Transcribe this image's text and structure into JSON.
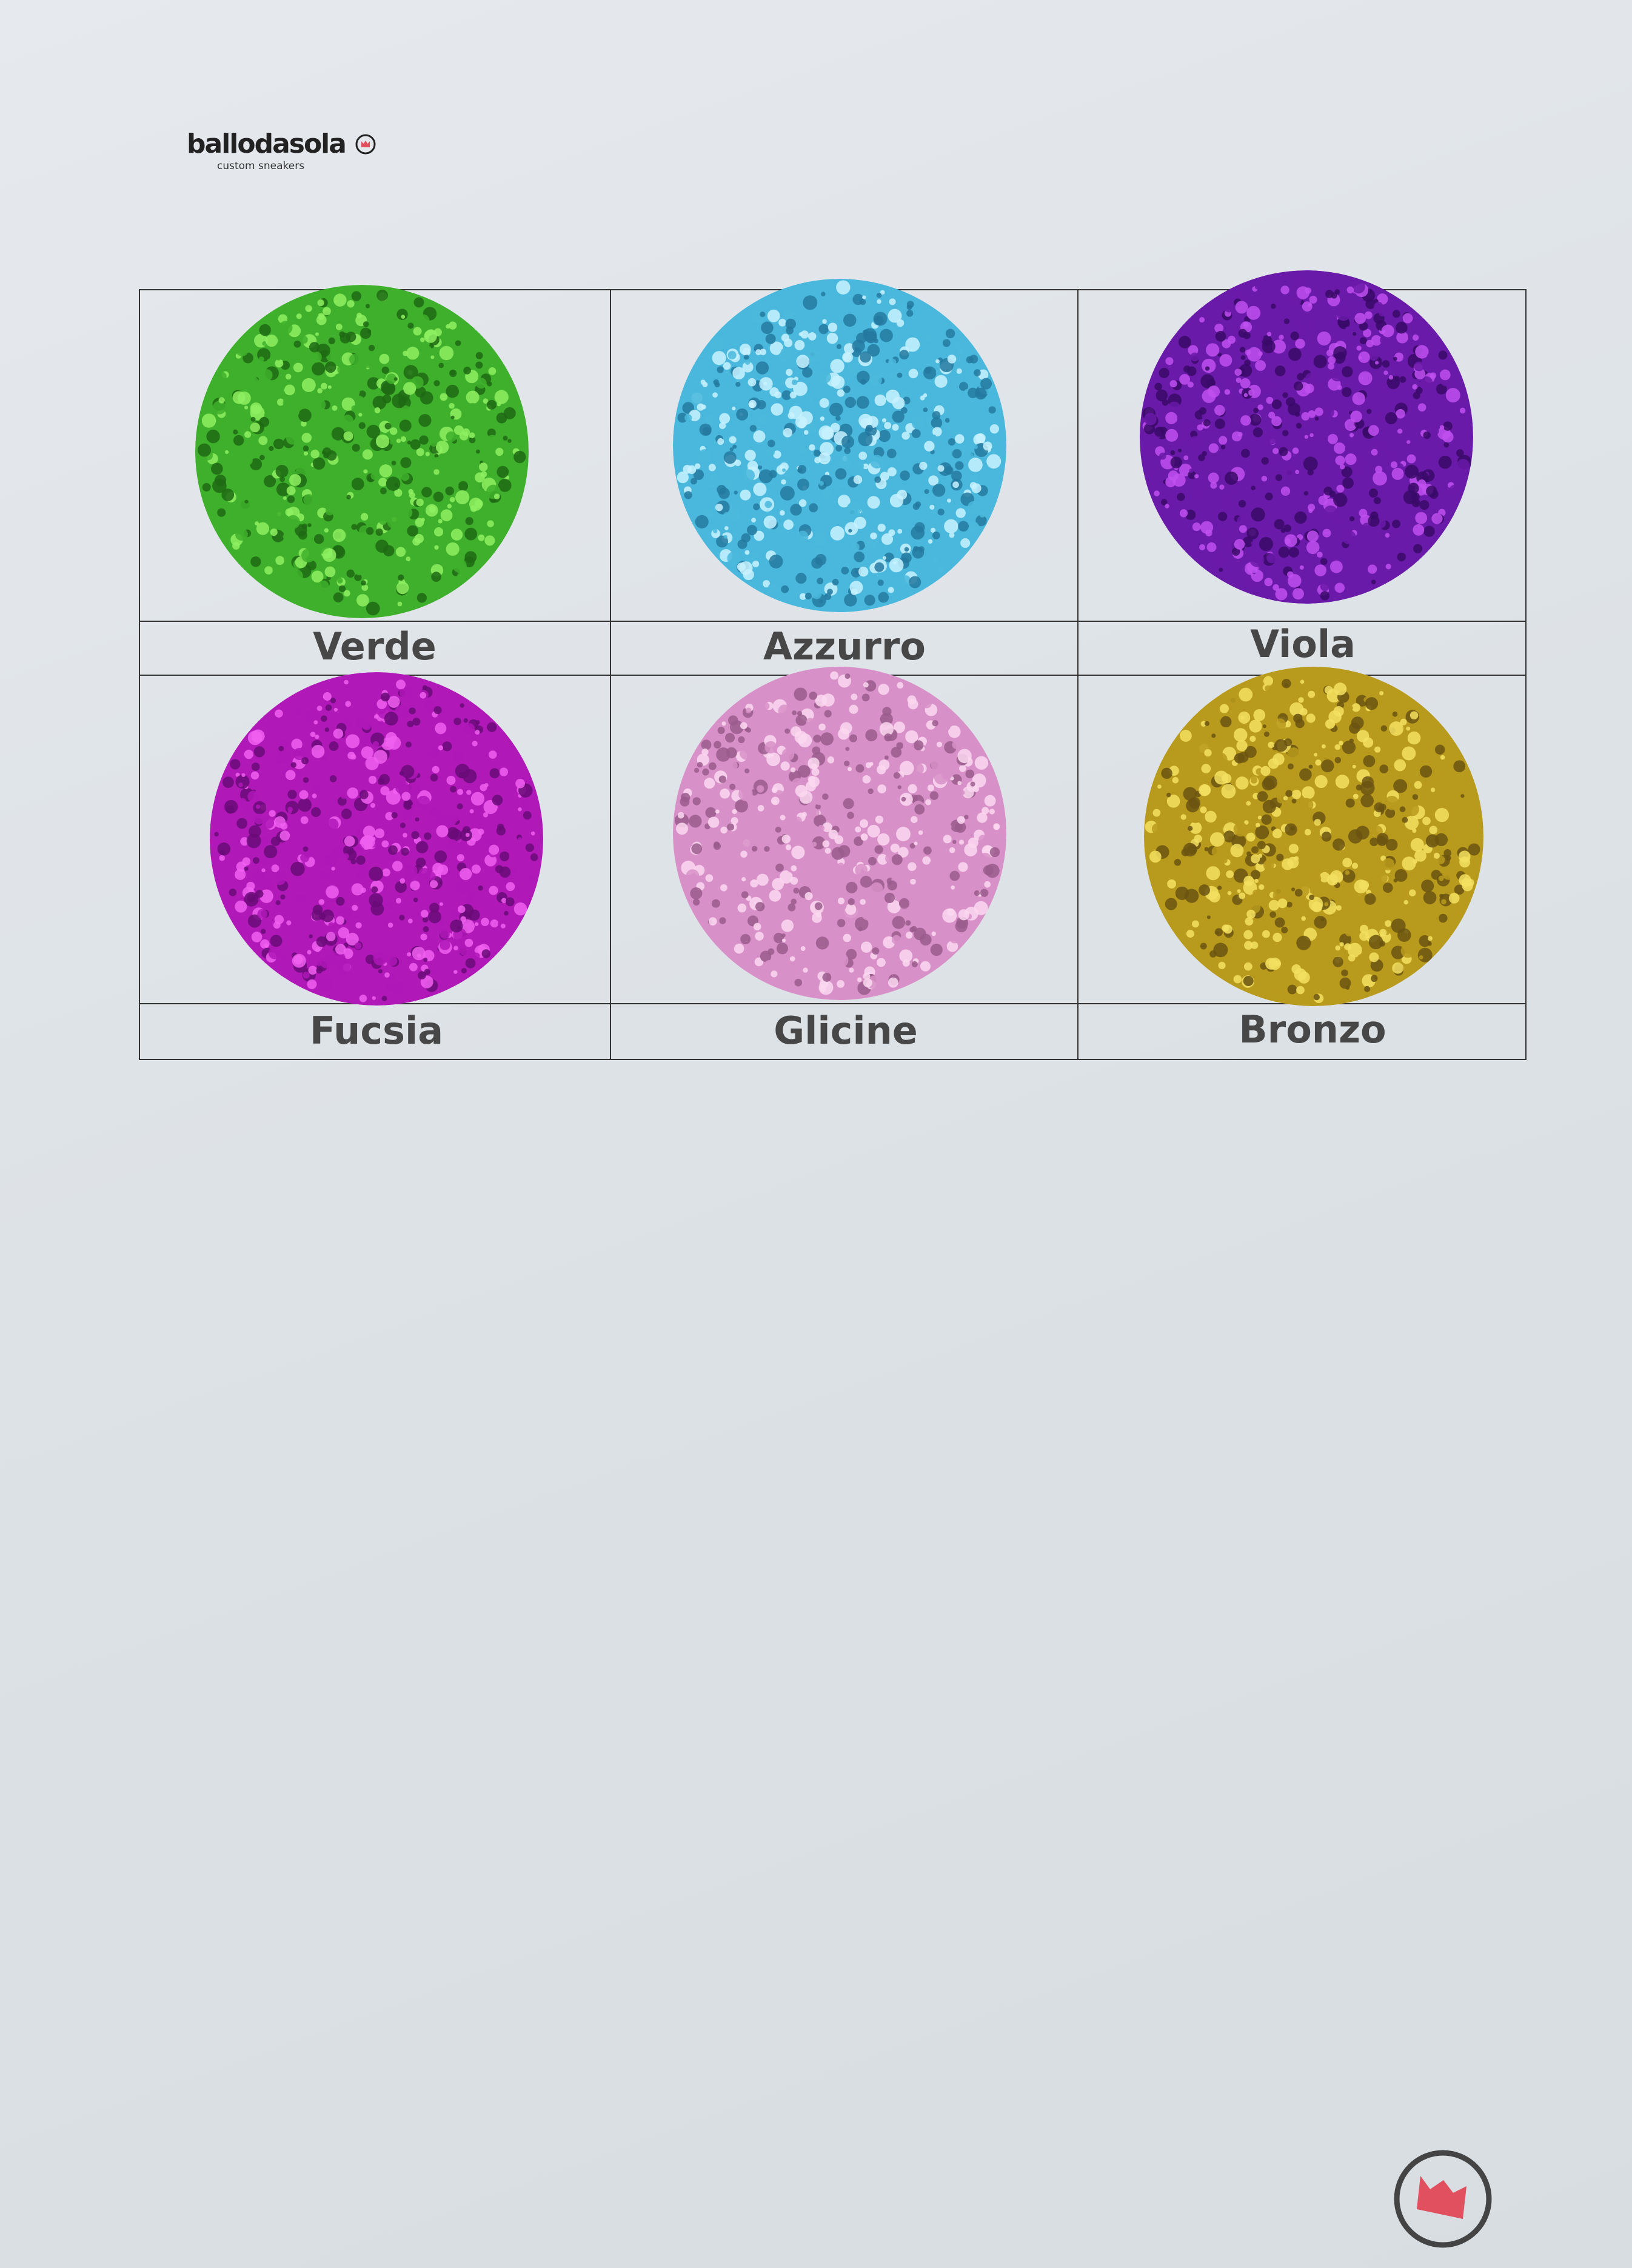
{
  "brand": {
    "name": "ballodasola",
    "tagline": "custom sneakers",
    "accent_color": "#e0505f"
  },
  "swatches": [
    {
      "label": "Verde",
      "color": "#3fb02c",
      "highlight": "#8ef060",
      "shadow": "#1e6a14"
    },
    {
      "label": "Azzurro",
      "color": "#4ab8dc",
      "highlight": "#c8f2ff",
      "shadow": "#2479a0"
    },
    {
      "label": "Viola",
      "color": "#6a1aa8",
      "highlight": "#c050f0",
      "shadow": "#3a0a68"
    },
    {
      "label": "Fucsia",
      "color": "#b018b8",
      "highlight": "#f060f0",
      "shadow": "#6a0a78"
    },
    {
      "label": "Glicine",
      "color": "#d890c8",
      "highlight": "#fbd8f0",
      "shadow": "#9a5c8c"
    },
    {
      "label": "Bronzo",
      "color": "#b89a1c",
      "highlight": "#f4e060",
      "shadow": "#6a5410"
    }
  ]
}
